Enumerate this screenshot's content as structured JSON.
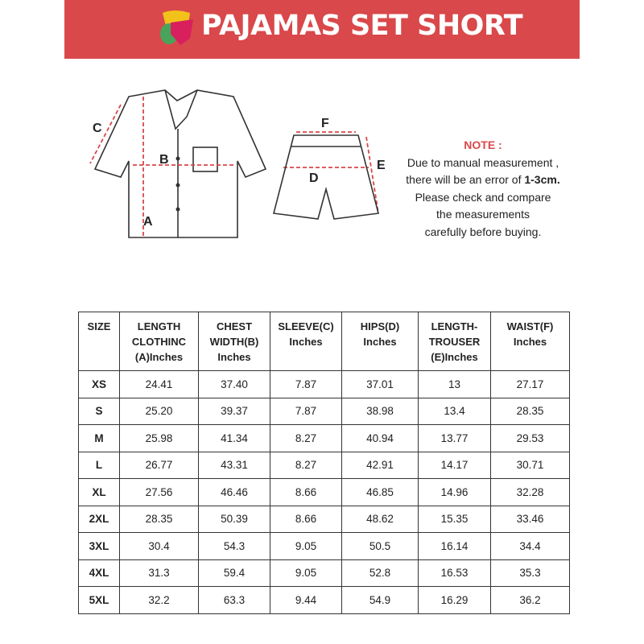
{
  "header": {
    "title": "PAJAMAS SET SHORT",
    "color": "#d9484a"
  },
  "diagram": {
    "labels": {
      "A": "A",
      "B": "B",
      "C": "C",
      "D": "D",
      "E": "E",
      "F": "F"
    }
  },
  "note": {
    "heading": "NOTE :",
    "line1": "Due to manual measurement ,",
    "line2_pre": "there will be an error of ",
    "line2_bold": "1-3cm.",
    "line3": "Please check and compare",
    "line4": "the measurements",
    "line5": "carefully before buying."
  },
  "table": {
    "headers": [
      [
        "SIZE"
      ],
      [
        "LENGTH",
        "CLOTHINC",
        "(A)Inches"
      ],
      [
        "CHEST",
        "WIDTH(B)",
        "Inches"
      ],
      [
        "SLEEVE(C)",
        "Inches"
      ],
      [
        "HIPS(D)",
        "Inches"
      ],
      [
        "LENGTH-",
        "TROUSER",
        "(E)Inches"
      ],
      [
        "WAIST(F)",
        "Inches"
      ]
    ],
    "rows": [
      [
        "XS",
        "24.41",
        "37.40",
        "7.87",
        "37.01",
        "13",
        "27.17"
      ],
      [
        "S",
        "25.20",
        "39.37",
        "7.87",
        "38.98",
        "13.4",
        "28.35"
      ],
      [
        "M",
        "25.98",
        "41.34",
        "8.27",
        "40.94",
        "13.77",
        "29.53"
      ],
      [
        "L",
        "26.77",
        "43.31",
        "8.27",
        "42.91",
        "14.17",
        "30.71"
      ],
      [
        "XL",
        "27.56",
        "46.46",
        "8.66",
        "46.85",
        "14.96",
        "32.28"
      ],
      [
        "2XL",
        "28.35",
        "50.39",
        "8.66",
        "48.62",
        "15.35",
        "33.46"
      ],
      [
        "3XL",
        "30.4",
        "54.3",
        "9.05",
        "50.5",
        "16.14",
        "34.4"
      ],
      [
        "4XL",
        "31.3",
        "59.4",
        "9.05",
        "52.8",
        "16.53",
        "35.3"
      ],
      [
        "5XL",
        "32.2",
        "63.3",
        "9.44",
        "54.9",
        "16.29",
        "36.2"
      ]
    ]
  }
}
